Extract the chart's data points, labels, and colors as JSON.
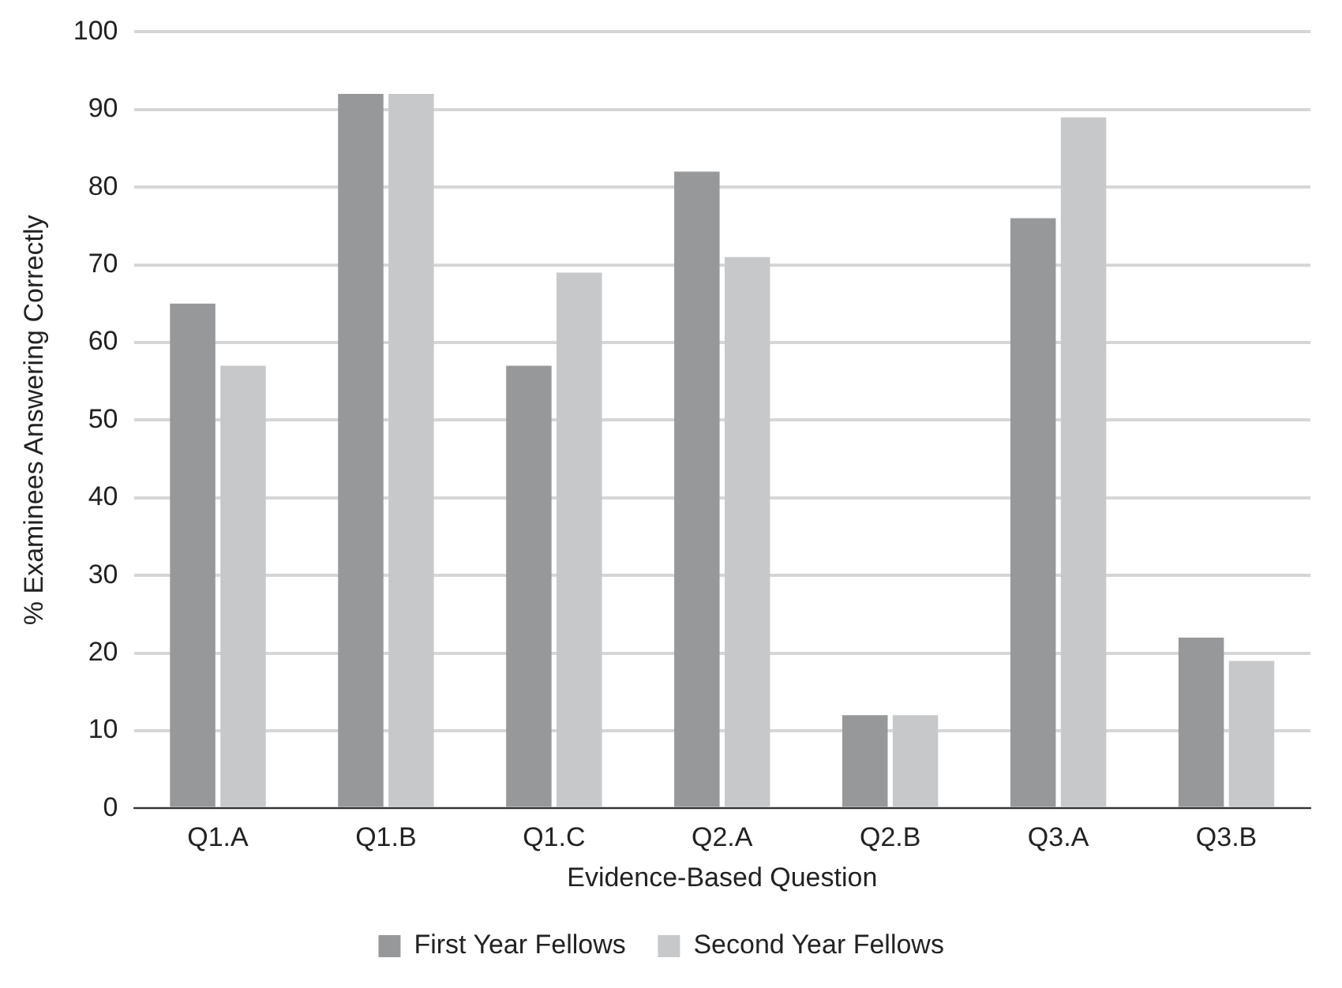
{
  "chart_data": {
    "type": "bar",
    "xlabel": "Evidence-Based Question",
    "ylabel": "% Examinees Answering Correctly",
    "categories": [
      "Q1.A",
      "Q1.B",
      "Q1.C",
      "Q2.A",
      "Q2.B",
      "Q3.A",
      "Q3.B"
    ],
    "series": [
      {
        "name": "First Year Fellows",
        "color": "#97989a",
        "values": [
          65,
          92,
          57,
          82,
          12,
          76,
          22
        ]
      },
      {
        "name": "Second Year Fellows",
        "color": "#c7c8ca",
        "values": [
          57,
          92,
          69,
          71,
          12,
          89,
          19
        ]
      }
    ],
    "ylim": [
      0,
      100
    ],
    "yticks": [
      0,
      10,
      20,
      30,
      40,
      50,
      60,
      70,
      80,
      90,
      100
    ],
    "grid": "y",
    "legend": "bottom"
  }
}
